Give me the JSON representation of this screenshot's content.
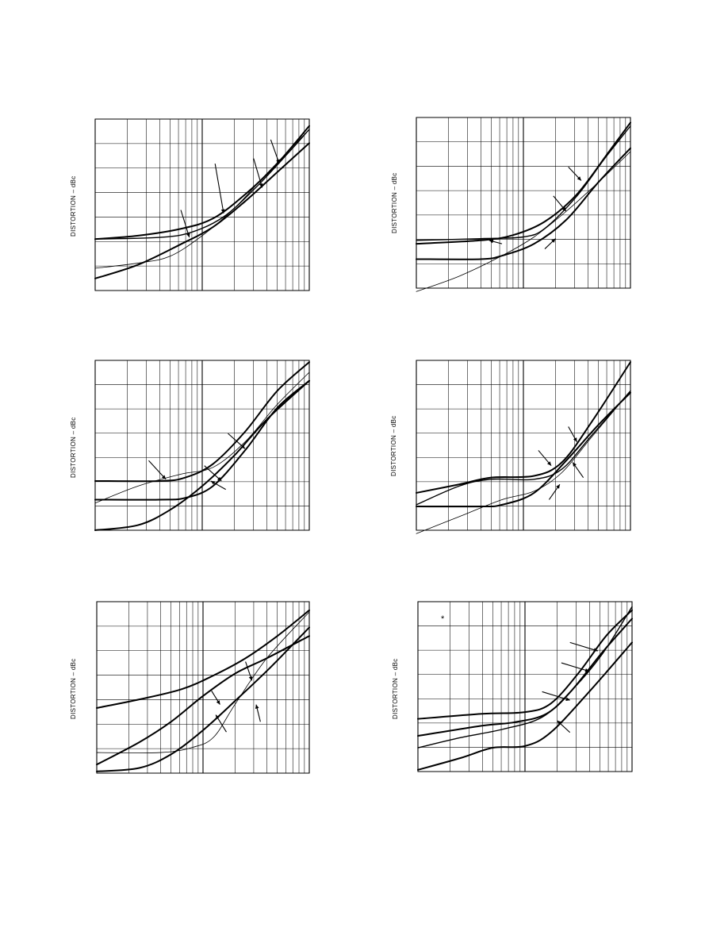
{
  "chart_data": [
    {
      "type": "line",
      "panel": "top-left",
      "ylabel": "DISTORTION – dBc",
      "x_scale": "log",
      "grid": true,
      "curves": [
        [
          [
            0,
            0.7
          ],
          [
            0.2,
            0.68
          ],
          [
            0.4,
            0.64
          ],
          [
            0.55,
            0.58
          ],
          [
            0.7,
            0.44
          ],
          [
            0.85,
            0.26
          ],
          [
            1,
            0.04
          ]
        ],
        [
          [
            0,
            0.7
          ],
          [
            0.3,
            0.69
          ],
          [
            0.45,
            0.66
          ],
          [
            0.6,
            0.57
          ],
          [
            0.75,
            0.4
          ],
          [
            0.9,
            0.2
          ],
          [
            1,
            0.06
          ]
        ],
        [
          [
            0,
            0.93
          ],
          [
            0.2,
            0.85
          ],
          [
            0.4,
            0.73
          ],
          [
            0.55,
            0.63
          ],
          [
            0.7,
            0.48
          ],
          [
            0.85,
            0.31
          ],
          [
            1,
            0.14
          ]
        ],
        [
          [
            0,
            0.87
          ],
          [
            0.2,
            0.84
          ],
          [
            0.35,
            0.8
          ],
          [
            0.5,
            0.68
          ],
          [
            0.65,
            0.52
          ],
          [
            0.8,
            0.32
          ],
          [
            1,
            0.06
          ]
        ]
      ],
      "widths": [
        2,
        1.4,
        2,
        0.8
      ],
      "arrows": [
        [
          0.82,
          0.12,
          0.86,
          0.26
        ],
        [
          0.74,
          0.23,
          0.78,
          0.4
        ],
        [
          0.56,
          0.26,
          0.6,
          0.55
        ],
        [
          0.4,
          0.53,
          0.44,
          0.69
        ]
      ]
    },
    {
      "type": "line",
      "panel": "top-right",
      "ylabel": "DISTORTION – dBc",
      "x_scale": "log",
      "grid": true,
      "curves": [
        [
          [
            0,
            0.74
          ],
          [
            0.3,
            0.72
          ],
          [
            0.45,
            0.69
          ],
          [
            0.6,
            0.61
          ],
          [
            0.75,
            0.45
          ],
          [
            0.9,
            0.2
          ],
          [
            1,
            0.03
          ]
        ],
        [
          [
            0,
            0.83
          ],
          [
            0.3,
            0.83
          ],
          [
            0.4,
            0.81
          ],
          [
            0.55,
            0.74
          ],
          [
            0.7,
            0.6
          ],
          [
            0.85,
            0.38
          ],
          [
            1,
            0.18
          ]
        ],
        [
          [
            0,
            0.72
          ],
          [
            0.3,
            0.71
          ],
          [
            0.5,
            0.7
          ],
          [
            0.6,
            0.65
          ],
          [
            0.75,
            0.46
          ],
          [
            0.88,
            0.24
          ],
          [
            1,
            0.05
          ]
        ],
        [
          [
            0,
            1.02
          ],
          [
            0.2,
            0.93
          ],
          [
            0.4,
            0.81
          ],
          [
            0.55,
            0.7
          ],
          [
            0.7,
            0.55
          ],
          [
            0.85,
            0.38
          ],
          [
            1,
            0.2
          ]
        ]
      ],
      "widths": [
        2,
        2,
        1.4,
        0.8
      ],
      "arrows": [
        [
          0.71,
          0.29,
          0.77,
          0.37
        ],
        [
          0.64,
          0.46,
          0.7,
          0.55
        ],
        [
          0.6,
          0.77,
          0.65,
          0.71
        ],
        [
          0.4,
          0.74,
          0.34,
          0.72
        ]
      ]
    },
    {
      "type": "line",
      "panel": "middle-left",
      "ylabel": "DISTORTION – dBc",
      "x_scale": "log",
      "grid": true,
      "curves": [
        [
          [
            0,
            0.71
          ],
          [
            0.3,
            0.71
          ],
          [
            0.42,
            0.69
          ],
          [
            0.55,
            0.61
          ],
          [
            0.7,
            0.42
          ],
          [
            0.85,
            0.18
          ],
          [
            1,
            0.01
          ]
        ],
        [
          [
            0,
            0.82
          ],
          [
            0.3,
            0.82
          ],
          [
            0.42,
            0.81
          ],
          [
            0.55,
            0.74
          ],
          [
            0.7,
            0.53
          ],
          [
            0.85,
            0.28
          ],
          [
            1,
            0.12
          ]
        ],
        [
          [
            0,
            1.0
          ],
          [
            0.2,
            0.97
          ],
          [
            0.35,
            0.88
          ],
          [
            0.5,
            0.74
          ],
          [
            0.65,
            0.56
          ],
          [
            0.8,
            0.35
          ],
          [
            1,
            0.12
          ]
        ],
        [
          [
            0,
            0.84
          ],
          [
            0.2,
            0.74
          ],
          [
            0.4,
            0.67
          ],
          [
            0.55,
            0.63
          ],
          [
            0.7,
            0.48
          ],
          [
            0.85,
            0.26
          ],
          [
            1,
            0.07
          ]
        ]
      ],
      "widths": [
        2,
        2,
        2,
        0.8
      ],
      "arrows": [
        [
          0.62,
          0.43,
          0.7,
          0.52
        ],
        [
          0.25,
          0.59,
          0.33,
          0.7
        ],
        [
          0.51,
          0.62,
          0.59,
          0.71
        ],
        [
          0.61,
          0.76,
          0.54,
          0.71
        ]
      ]
    },
    {
      "type": "line",
      "panel": "middle-right",
      "ylabel": "DISTORTION – dBc",
      "x_scale": "log",
      "grid": true,
      "curves": [
        [
          [
            0,
            0.78
          ],
          [
            0.2,
            0.73
          ],
          [
            0.35,
            0.69
          ],
          [
            0.55,
            0.68
          ],
          [
            0.68,
            0.6
          ],
          [
            0.82,
            0.36
          ],
          [
            1,
            0.01
          ]
        ],
        [
          [
            0,
            0.85
          ],
          [
            0.2,
            0.74
          ],
          [
            0.35,
            0.7
          ],
          [
            0.55,
            0.7
          ],
          [
            0.68,
            0.64
          ],
          [
            0.82,
            0.44
          ],
          [
            1,
            0.18
          ]
        ],
        [
          [
            0,
            0.86
          ],
          [
            0.3,
            0.86
          ],
          [
            0.4,
            0.85
          ],
          [
            0.55,
            0.78
          ],
          [
            0.7,
            0.59
          ],
          [
            0.85,
            0.38
          ],
          [
            1,
            0.19
          ]
        ],
        [
          [
            0,
            1.02
          ],
          [
            0.2,
            0.92
          ],
          [
            0.4,
            0.82
          ],
          [
            0.55,
            0.77
          ],
          [
            0.68,
            0.66
          ],
          [
            0.82,
            0.45
          ],
          [
            1,
            0.18
          ]
        ]
      ],
      "widths": [
        2,
        1.4,
        2,
        0.8
      ],
      "arrows": [
        [
          0.71,
          0.39,
          0.75,
          0.48
        ],
        [
          0.57,
          0.53,
          0.63,
          0.62
        ],
        [
          0.78,
          0.69,
          0.73,
          0.6
        ],
        [
          0.62,
          0.82,
          0.67,
          0.73
        ]
      ]
    },
    {
      "type": "line",
      "panel": "bottom-left",
      "ylabel": "DISTORTION – dBc",
      "x_scale": "log",
      "grid": true,
      "curves": [
        [
          [
            0,
            0.62
          ],
          [
            0.2,
            0.57
          ],
          [
            0.4,
            0.51
          ],
          [
            0.55,
            0.43
          ],
          [
            0.7,
            0.33
          ],
          [
            0.85,
            0.2
          ],
          [
            1,
            0.05
          ]
        ],
        [
          [
            0,
            0.95
          ],
          [
            0.2,
            0.82
          ],
          [
            0.35,
            0.7
          ],
          [
            0.5,
            0.55
          ],
          [
            0.65,
            0.42
          ],
          [
            0.8,
            0.33
          ],
          [
            1,
            0.2
          ]
        ],
        [
          [
            0,
            0.99
          ],
          [
            0.2,
            0.97
          ],
          [
            0.35,
            0.89
          ],
          [
            0.5,
            0.75
          ],
          [
            0.65,
            0.58
          ],
          [
            0.82,
            0.38
          ],
          [
            1,
            0.15
          ]
        ],
        [
          [
            0,
            0.88
          ],
          [
            0.3,
            0.88
          ],
          [
            0.45,
            0.85
          ],
          [
            0.55,
            0.79
          ],
          [
            0.65,
            0.6
          ],
          [
            0.8,
            0.33
          ],
          [
            1,
            0.06
          ]
        ]
      ],
      "widths": [
        2,
        2,
        2,
        0.8
      ],
      "arrows": [
        [
          0.7,
          0.35,
          0.73,
          0.46
        ],
        [
          0.54,
          0.52,
          0.58,
          0.6
        ],
        [
          0.77,
          0.7,
          0.75,
          0.6
        ],
        [
          0.61,
          0.76,
          0.56,
          0.66
        ]
      ]
    },
    {
      "type": "line",
      "panel": "bottom-right",
      "ylabel": "DISTORTION – dBc",
      "x_scale": "log",
      "grid": true,
      "curves": [
        [
          [
            0,
            0.69
          ],
          [
            0.3,
            0.66
          ],
          [
            0.5,
            0.65
          ],
          [
            0.62,
            0.6
          ],
          [
            0.75,
            0.42
          ],
          [
            0.88,
            0.2
          ],
          [
            1,
            0.05
          ]
        ],
        [
          [
            0,
            0.79
          ],
          [
            0.3,
            0.73
          ],
          [
            0.45,
            0.71
          ],
          [
            0.6,
            0.66
          ],
          [
            0.72,
            0.52
          ],
          [
            0.86,
            0.3
          ],
          [
            1,
            0.1
          ]
        ],
        [
          [
            0,
            0.86
          ],
          [
            0.2,
            0.8
          ],
          [
            0.4,
            0.75
          ],
          [
            0.58,
            0.68
          ],
          [
            0.72,
            0.52
          ],
          [
            0.86,
            0.31
          ],
          [
            1,
            0.03
          ]
        ],
        [
          [
            0,
            0.99
          ],
          [
            0.2,
            0.92
          ],
          [
            0.35,
            0.86
          ],
          [
            0.5,
            0.85
          ],
          [
            0.62,
            0.77
          ],
          [
            0.8,
            0.53
          ],
          [
            1,
            0.24
          ]
        ]
      ],
      "widths": [
        2,
        2,
        1.4,
        2
      ],
      "arrows": [
        [
          0.71,
          0.24,
          0.84,
          0.29
        ],
        [
          0.67,
          0.36,
          0.8,
          0.41
        ],
        [
          0.58,
          0.53,
          0.71,
          0.58
        ],
        [
          0.71,
          0.77,
          0.65,
          0.7
        ]
      ]
    }
  ],
  "panel_mark": "*"
}
